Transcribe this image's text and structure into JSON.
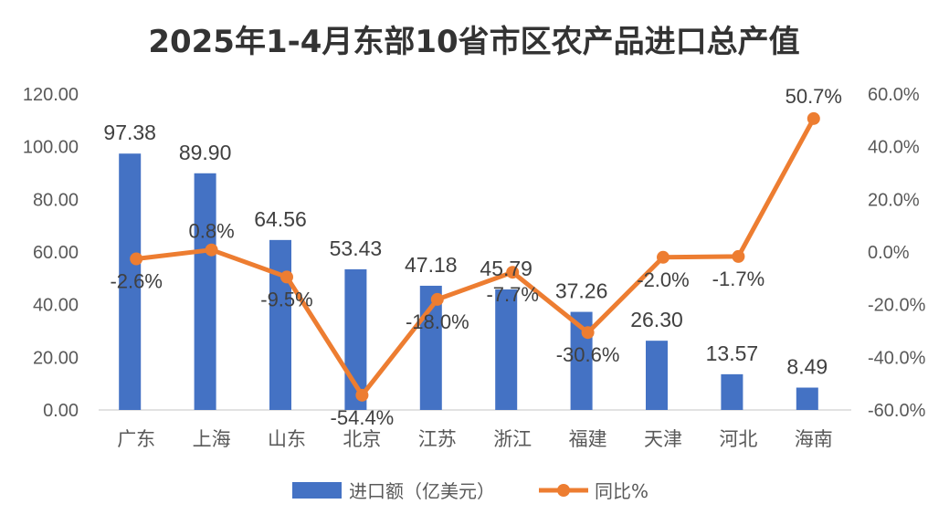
{
  "chart_data": {
    "type": "bar+line",
    "title": "2025年1-4月东部10省市区农产品进口总产值",
    "categories": [
      "广东",
      "上海",
      "山东",
      "北京",
      "江苏",
      "浙江",
      "福建",
      "天津",
      "河北",
      "海南"
    ],
    "series": [
      {
        "name": "进口额（亿美元）",
        "type": "bar",
        "axis": "left",
        "color": "#4472C4",
        "values": [
          97.38,
          89.9,
          64.56,
          53.43,
          47.18,
          45.79,
          37.26,
          26.3,
          13.57,
          8.49
        ],
        "labels": [
          "97.38",
          "89.90",
          "64.56",
          "53.43",
          "47.18",
          "45.79",
          "37.26",
          "26.30",
          "13.57",
          "8.49"
        ]
      },
      {
        "name": "同比%",
        "type": "line",
        "axis": "right",
        "color": "#ED7D31",
        "values": [
          -2.6,
          0.8,
          -9.5,
          -54.4,
          -18.0,
          -7.7,
          -30.6,
          -2.0,
          -1.7,
          50.7
        ],
        "labels": [
          "-2.6%",
          "0.8%",
          "-9.5%",
          "-54.4%",
          "-18.0%",
          "-7.7%",
          "-30.6%",
          "-2.0%",
          "-1.7%",
          "50.7%"
        ]
      }
    ],
    "left_axis": {
      "ylim": [
        0,
        120
      ],
      "ticks": [
        0,
        20,
        40,
        60,
        80,
        100,
        120
      ],
      "tick_labels": [
        "0.00",
        "20.00",
        "40.00",
        "60.00",
        "80.00",
        "100.00",
        "120.00"
      ]
    },
    "right_axis": {
      "ylim": [
        -60,
        60
      ],
      "ticks": [
        -60,
        -40,
        -20,
        0,
        20,
        40,
        60
      ],
      "tick_labels": [
        "-60.0%",
        "-40.0%",
        "-20.0%",
        "0.0%",
        "20.0%",
        "40.0%",
        "60.0%"
      ]
    },
    "grid": false,
    "legend": "bottom"
  }
}
